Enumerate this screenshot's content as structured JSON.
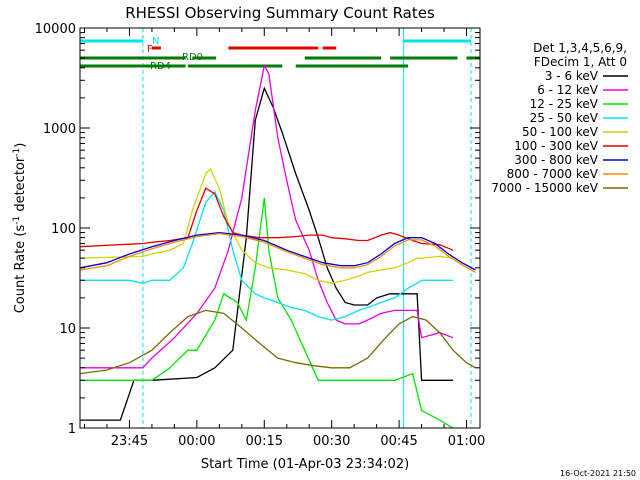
{
  "chart_data": {
    "type": "line",
    "title": "RHESSI Observing Summary Count Rates",
    "xlabel": "Start Time (01-Apr-03 23:34:02)",
    "ylabel_main": "Count Rate (s",
    "ylabel_sup1": "-1",
    "ylabel_mid": " detector",
    "ylabel_sup2": "-1",
    "ylabel_end": ")",
    "yscale": "log",
    "ylim": [
      1,
      10000
    ],
    "xlim_minutes_from_2340": [
      -6,
      83
    ],
    "x_ticks": [
      {
        "label": "23:45",
        "min": 5
      },
      {
        "label": "00:00",
        "min": 20
      },
      {
        "label": "00:15",
        "min": 35
      },
      {
        "label": "00:30",
        "min": 50
      },
      {
        "label": "00:45",
        "min": 65
      },
      {
        "label": "01:00",
        "min": 80
      }
    ],
    "y_ticks": [
      {
        "label": "1",
        "v": 1
      },
      {
        "label": "10",
        "v": 10
      },
      {
        "label": "100",
        "v": 100
      },
      {
        "label": "1000",
        "v": 1000
      },
      {
        "label": "10000",
        "v": 10000
      }
    ],
    "legend_header": [
      "Det 1,3,4,5,6,9,",
      "FDecim 1, Att 0"
    ],
    "legend_position": "right",
    "footer_date": "16-Oct-2021 21:50",
    "flags": {
      "N_label": "N",
      "F_label": "F",
      "RD0_label": "RD0",
      "RD4_label": "RD4",
      "night_ranges": [
        [
          -6,
          8
        ],
        [
          66,
          81
        ]
      ],
      "flare_ranges": [
        [
          10,
          12
        ],
        [
          27,
          47
        ],
        [
          48,
          51
        ]
      ],
      "saa_ranges": [
        [
          -6,
          17.5
        ],
        [
          19,
          24.3
        ],
        [
          44,
          61
        ],
        [
          63,
          78
        ],
        [
          80,
          83
        ]
      ],
      "rd_ranges": [
        [
          -6,
          8
        ],
        [
          8,
          17.5
        ],
        [
          18,
          39
        ],
        [
          42,
          67
        ]
      ],
      "colors": {
        "night": "#00e5ee",
        "flare": "#e80000",
        "green": "#007a00"
      }
    },
    "series": [
      {
        "name": "3 - 6 keV",
        "color": "#000000",
        "points": [
          [
            -6,
            1.2
          ],
          [
            0,
            1.2
          ],
          [
            3,
            1.2
          ],
          [
            6,
            3
          ],
          [
            10,
            3
          ],
          [
            20,
            3.2
          ],
          [
            24,
            4
          ],
          [
            28,
            6
          ],
          [
            31,
            80
          ],
          [
            33,
            1200
          ],
          [
            35,
            2500
          ],
          [
            37,
            1600
          ],
          [
            39,
            900
          ],
          [
            42,
            350
          ],
          [
            45,
            150
          ],
          [
            47,
            80
          ],
          [
            49,
            40
          ],
          [
            51,
            25
          ],
          [
            53,
            18
          ],
          [
            55,
            17
          ],
          [
            58,
            17
          ],
          [
            60,
            20
          ],
          [
            63,
            22
          ],
          [
            66,
            22
          ],
          [
            69,
            22
          ],
          [
            70,
            3
          ],
          [
            71,
            3
          ],
          [
            74,
            3
          ],
          [
            77,
            3
          ]
        ]
      },
      {
        "name": "6 - 12 keV",
        "color": "#e600e6",
        "points": [
          [
            -6,
            4
          ],
          [
            5,
            4
          ],
          [
            8,
            4
          ],
          [
            10,
            5
          ],
          [
            15,
            8
          ],
          [
            20,
            14
          ],
          [
            24,
            25
          ],
          [
            27,
            60
          ],
          [
            30,
            200
          ],
          [
            33,
            1500
          ],
          [
            35,
            4200
          ],
          [
            36,
            3500
          ],
          [
            38,
            800
          ],
          [
            40,
            300
          ],
          [
            42,
            120
          ],
          [
            45,
            60
          ],
          [
            47,
            30
          ],
          [
            49,
            18
          ],
          [
            51,
            12
          ],
          [
            53,
            11
          ],
          [
            56,
            11
          ],
          [
            58,
            12
          ],
          [
            61,
            14
          ],
          [
            64,
            15
          ],
          [
            66,
            15
          ],
          [
            69,
            15
          ],
          [
            70,
            8
          ],
          [
            74,
            9
          ],
          [
            77,
            8
          ]
        ]
      },
      {
        "name": "12 - 25 keV",
        "color": "#00e600",
        "points": [
          [
            -6,
            3
          ],
          [
            8,
            3
          ],
          [
            10,
            3
          ],
          [
            14,
            4
          ],
          [
            18,
            6
          ],
          [
            20,
            6
          ],
          [
            24,
            12
          ],
          [
            26,
            22
          ],
          [
            29,
            18
          ],
          [
            31,
            12
          ],
          [
            33,
            40
          ],
          [
            35,
            200
          ],
          [
            36,
            60
          ],
          [
            38,
            20
          ],
          [
            41,
            12
          ],
          [
            44,
            6
          ],
          [
            47,
            3
          ],
          [
            50,
            3
          ],
          [
            55,
            3
          ],
          [
            60,
            3
          ],
          [
            64,
            3
          ],
          [
            68,
            3.5
          ],
          [
            70,
            1.5
          ],
          [
            74,
            1.2
          ],
          [
            77,
            1
          ]
        ]
      },
      {
        "name": "25 - 50 keV",
        "color": "#00e5ee",
        "points": [
          [
            -6,
            30
          ],
          [
            5,
            30
          ],
          [
            8,
            28
          ],
          [
            10,
            30
          ],
          [
            14,
            30
          ],
          [
            17,
            40
          ],
          [
            19,
            70
          ],
          [
            22,
            180
          ],
          [
            24,
            230
          ],
          [
            26,
            150
          ],
          [
            28,
            60
          ],
          [
            30,
            30
          ],
          [
            33,
            22
          ],
          [
            35,
            20
          ],
          [
            38,
            18
          ],
          [
            41,
            16
          ],
          [
            44,
            15
          ],
          [
            47,
            13
          ],
          [
            50,
            12
          ],
          [
            53,
            13
          ],
          [
            56,
            15
          ],
          [
            58,
            16
          ],
          [
            61,
            18
          ],
          [
            64,
            20
          ],
          [
            67,
            25
          ],
          [
            69,
            28
          ],
          [
            70,
            30
          ],
          [
            74,
            30
          ],
          [
            77,
            30
          ]
        ]
      },
      {
        "name": "50 - 100 keV",
        "color": "#d4d400",
        "points": [
          [
            -6,
            50
          ],
          [
            8,
            52
          ],
          [
            10,
            55
          ],
          [
            14,
            60
          ],
          [
            17,
            70
          ],
          [
            19,
            150
          ],
          [
            22,
            350
          ],
          [
            23,
            390
          ],
          [
            25,
            250
          ],
          [
            27,
            110
          ],
          [
            30,
            60
          ],
          [
            33,
            45
          ],
          [
            36,
            40
          ],
          [
            40,
            38
          ],
          [
            44,
            35
          ],
          [
            47,
            30
          ],
          [
            50,
            28
          ],
          [
            53,
            30
          ],
          [
            56,
            33
          ],
          [
            58,
            36
          ],
          [
            61,
            38
          ],
          [
            64,
            40
          ],
          [
            67,
            45
          ],
          [
            69,
            50
          ],
          [
            70,
            50
          ],
          [
            74,
            52
          ],
          [
            77,
            50
          ]
        ]
      },
      {
        "name": "100 - 300 keV",
        "color": "#e80000",
        "points": [
          [
            -6,
            65
          ],
          [
            8,
            70
          ],
          [
            10,
            72
          ],
          [
            14,
            75
          ],
          [
            18,
            80
          ],
          [
            20,
            150
          ],
          [
            22,
            250
          ],
          [
            24,
            220
          ],
          [
            26,
            130
          ],
          [
            28,
            90
          ],
          [
            30,
            85
          ],
          [
            34,
            80
          ],
          [
            38,
            80
          ],
          [
            42,
            82
          ],
          [
            45,
            85
          ],
          [
            48,
            85
          ],
          [
            50,
            80
          ],
          [
            53,
            78
          ],
          [
            56,
            75
          ],
          [
            58,
            75
          ],
          [
            61,
            85
          ],
          [
            63,
            90
          ],
          [
            65,
            85
          ],
          [
            68,
            75
          ],
          [
            70,
            70
          ],
          [
            74,
            68
          ],
          [
            77,
            60
          ]
        ]
      },
      {
        "name": "300 - 800 keV",
        "color": "#0000dd",
        "points": [
          [
            -6,
            40
          ],
          [
            0,
            45
          ],
          [
            5,
            55
          ],
          [
            10,
            65
          ],
          [
            15,
            75
          ],
          [
            20,
            85
          ],
          [
            25,
            90
          ],
          [
            30,
            85
          ],
          [
            35,
            75
          ],
          [
            40,
            60
          ],
          [
            45,
            50
          ],
          [
            48,
            45
          ],
          [
            52,
            42
          ],
          [
            55,
            42
          ],
          [
            58,
            45
          ],
          [
            61,
            55
          ],
          [
            64,
            70
          ],
          [
            67,
            80
          ],
          [
            70,
            80
          ],
          [
            73,
            70
          ],
          [
            76,
            55
          ],
          [
            79,
            45
          ],
          [
            82,
            38
          ]
        ]
      },
      {
        "name": "800 - 7000 keV",
        "color": "#ff8c00",
        "points": [
          [
            -6,
            38
          ],
          [
            0,
            42
          ],
          [
            5,
            52
          ],
          [
            10,
            62
          ],
          [
            15,
            72
          ],
          [
            20,
            82
          ],
          [
            25,
            88
          ],
          [
            30,
            82
          ],
          [
            35,
            72
          ],
          [
            40,
            58
          ],
          [
            45,
            48
          ],
          [
            48,
            43
          ],
          [
            52,
            40
          ],
          [
            55,
            40
          ],
          [
            58,
            43
          ],
          [
            61,
            52
          ],
          [
            64,
            66
          ],
          [
            67,
            76
          ],
          [
            70,
            76
          ],
          [
            73,
            66
          ],
          [
            76,
            52
          ],
          [
            79,
            43
          ],
          [
            82,
            36
          ]
        ]
      },
      {
        "name": "7000 - 15000 keV",
        "color": "#7a6a00",
        "points": [
          [
            -6,
            3.5
          ],
          [
            0,
            3.8
          ],
          [
            5,
            4.5
          ],
          [
            10,
            6
          ],
          [
            14,
            9
          ],
          [
            18,
            13
          ],
          [
            22,
            15
          ],
          [
            26,
            14
          ],
          [
            30,
            10
          ],
          [
            34,
            7
          ],
          [
            38,
            5
          ],
          [
            42,
            4.5
          ],
          [
            46,
            4.2
          ],
          [
            50,
            4
          ],
          [
            54,
            4
          ],
          [
            58,
            5
          ],
          [
            62,
            8
          ],
          [
            65,
            11
          ],
          [
            68,
            13
          ],
          [
            71,
            12
          ],
          [
            74,
            9
          ],
          [
            77,
            6
          ],
          [
            80,
            4.5
          ],
          [
            82,
            4
          ]
        ]
      }
    ]
  }
}
